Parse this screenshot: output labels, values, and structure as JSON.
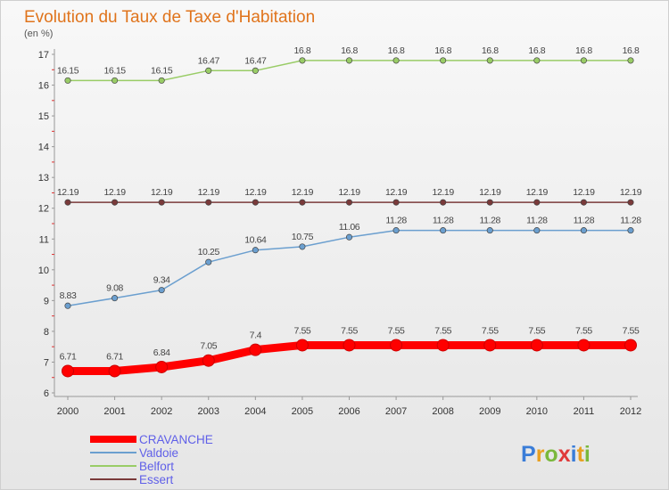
{
  "chart_data": {
    "type": "line",
    "title": "Evolution du Taux de Taxe d'Habitation",
    "subtitle": "(en %)",
    "x": [
      2000,
      2001,
      2002,
      2003,
      2004,
      2005,
      2006,
      2007,
      2008,
      2009,
      2010,
      2011,
      2012
    ],
    "x_tick_labels": [
      "2000",
      "2001",
      "2002",
      "2003",
      "2004",
      "2005",
      "2006",
      "2007",
      "2008",
      "2009",
      "2010",
      "2011",
      "2012"
    ],
    "ylim": [
      6,
      17
    ],
    "y_ticks": [
      6,
      7,
      8,
      9,
      10,
      11,
      12,
      13,
      14,
      15,
      16,
      17
    ],
    "grid": false,
    "legend_position": "bottom-left",
    "series": [
      {
        "name": "CRAVANCHE",
        "color": "#ff0000",
        "highlight": true,
        "values": [
          6.71,
          6.71,
          6.84,
          7.05,
          7.4,
          7.55,
          7.55,
          7.55,
          7.55,
          7.55,
          7.55,
          7.55,
          7.55
        ],
        "labels": [
          "6.71",
          "6.71",
          "6.84",
          "7.05",
          "7.4",
          "7.55",
          "7.55",
          "7.55",
          "7.55",
          "7.55",
          "7.55",
          "7.55",
          "7.55"
        ]
      },
      {
        "name": "Valdoie",
        "color": "#6b9fcf",
        "values": [
          8.83,
          9.08,
          9.34,
          10.25,
          10.64,
          10.75,
          11.06,
          11.28,
          11.28,
          11.28,
          11.28,
          11.28,
          11.28
        ],
        "labels": [
          "8.83",
          "9.08",
          "9.34",
          "10.25",
          "10.64",
          "10.75",
          "11.06",
          "11.28",
          "11.28",
          "11.28",
          "11.28",
          "11.28",
          "11.28"
        ]
      },
      {
        "name": "Belfort",
        "color": "#99cc66",
        "values": [
          16.15,
          16.15,
          16.15,
          16.47,
          16.47,
          16.8,
          16.8,
          16.8,
          16.8,
          16.8,
          16.8,
          16.8,
          16.8
        ],
        "labels": [
          "16.15",
          "16.15",
          "16.15",
          "16.47",
          "16.47",
          "16.8",
          "16.8",
          "16.8",
          "16.8",
          "16.8",
          "16.8",
          "16.8",
          "16.8"
        ]
      },
      {
        "name": "Essert",
        "color": "#7a3a3a",
        "values": [
          12.19,
          12.19,
          12.19,
          12.19,
          12.19,
          12.19,
          12.19,
          12.19,
          12.19,
          12.19,
          12.19,
          12.19,
          12.19
        ],
        "labels": [
          "12.19",
          "12.19",
          "12.19",
          "12.19",
          "12.19",
          "12.19",
          "12.19",
          "12.19",
          "12.19",
          "12.19",
          "12.19",
          "12.19",
          "12.19"
        ]
      }
    ]
  },
  "logo": {
    "text": "Proxiti"
  }
}
